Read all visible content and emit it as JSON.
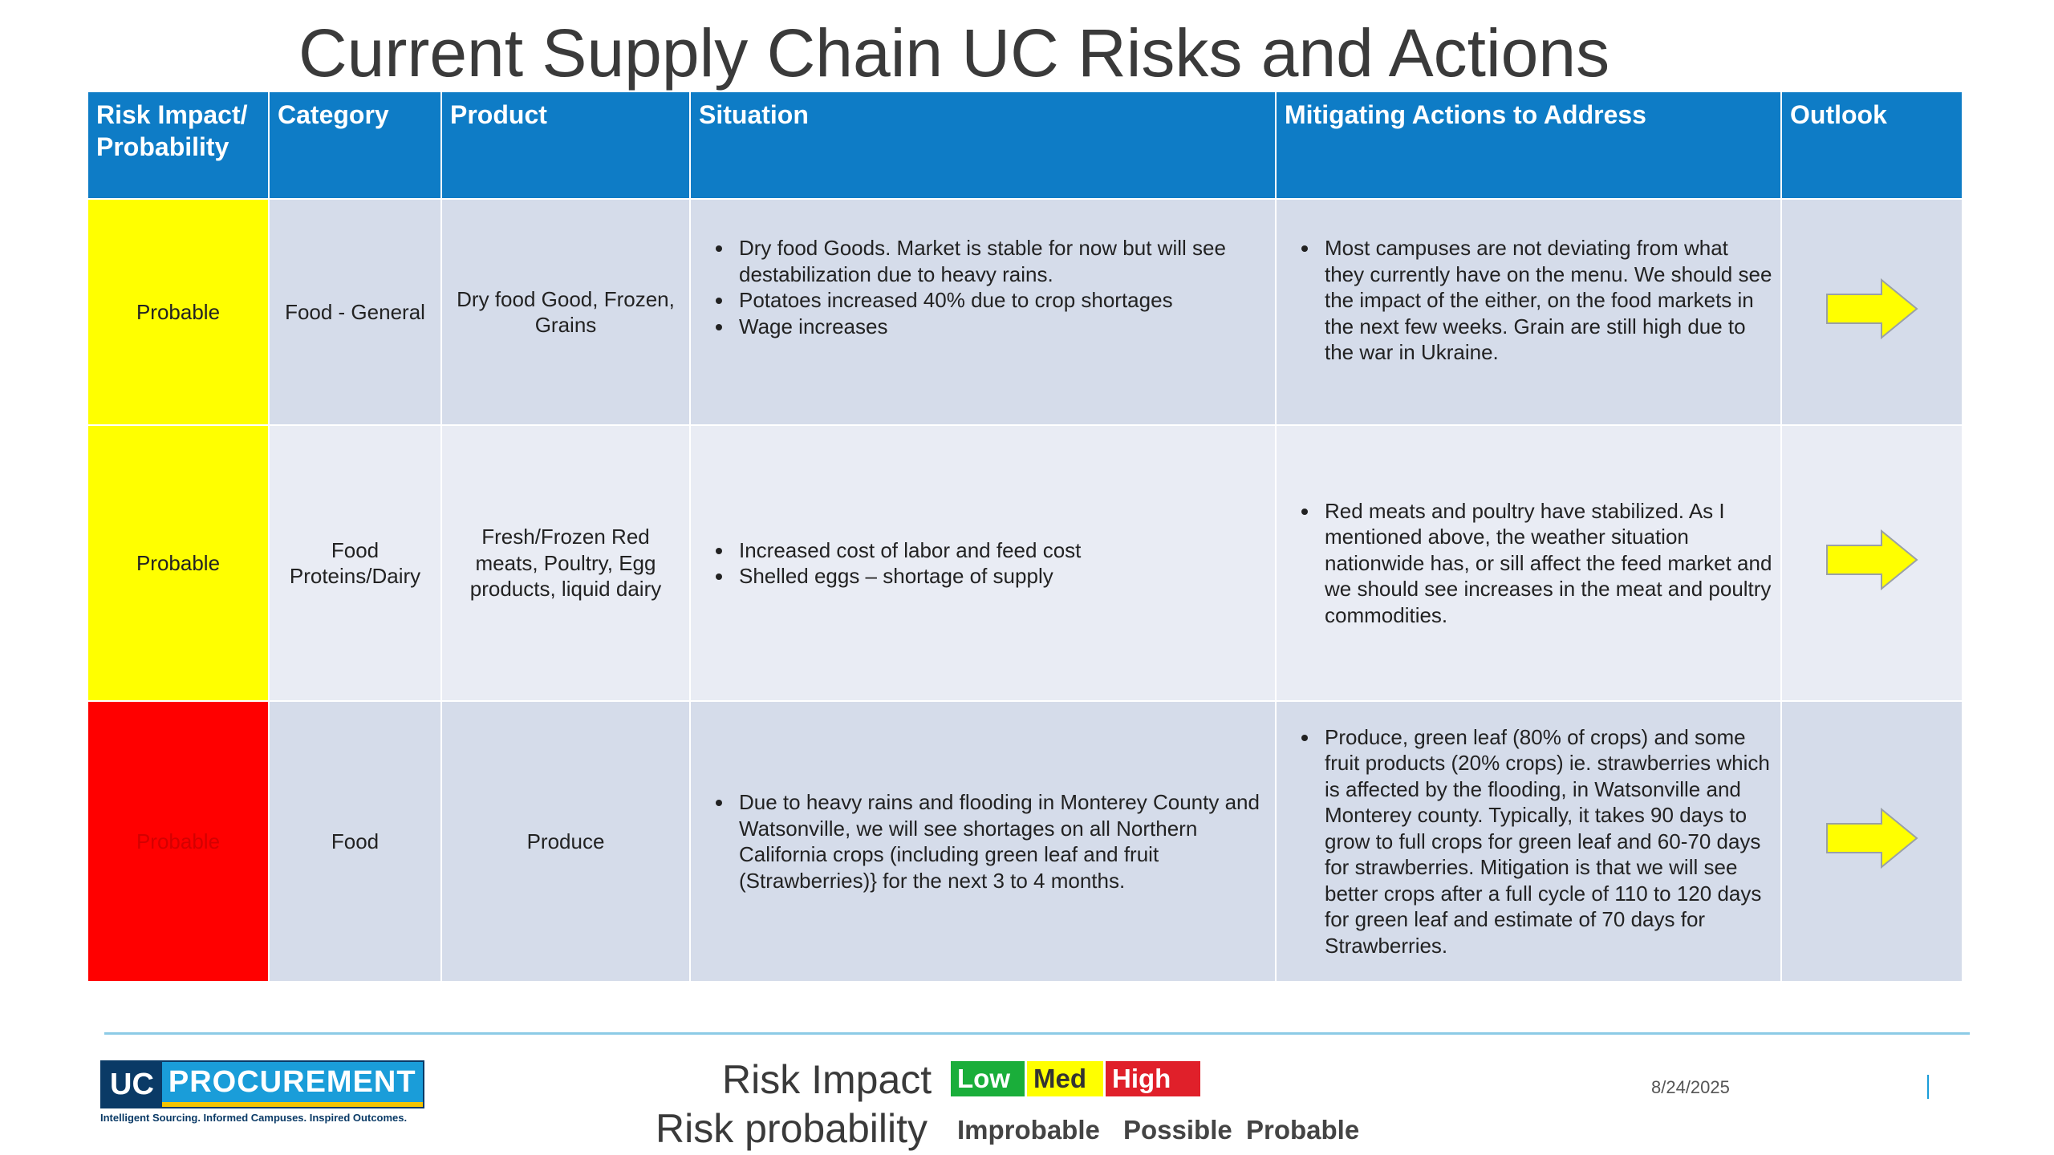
{
  "title": "Current Supply Chain UC Risks and Actions",
  "table": {
    "headers": {
      "impact": "Risk Impact/ Probability",
      "category": "Category",
      "product": "Product",
      "situation": "Situation",
      "actions": "Mitigating Actions to Address",
      "outlook": "Outlook"
    },
    "rows": [
      {
        "impact": "Probable",
        "impact_color": "#ffff00",
        "category": "Food - General",
        "product": "Dry food Good, Frozen, Grains",
        "situation": [
          "Dry food Goods. Market is stable for now but will see destabilization due to heavy rains.",
          "Potatoes increased 40% due to crop shortages",
          "Wage increases"
        ],
        "actions": [
          "Most campuses are not deviating from what they currently have on the menu. We should see the impact of the either, on the food markets in the next few weeks. Grain are still high due to the war in Ukraine."
        ],
        "outlook_icon": "right-arrow-icon"
      },
      {
        "impact": "Probable",
        "impact_color": "#ffff00",
        "category": "Food Proteins/Dairy",
        "product": "Fresh/Frozen Red meats, Poultry, Egg products, liquid dairy",
        "situation": [
          "Increased cost of labor and feed cost",
          "Shelled eggs – shortage of supply"
        ],
        "actions": [
          "Red meats and poultry have stabilized. As I mentioned above, the weather situation nationwide has, or sill affect the feed market and we should see increases in the meat and poultry commodities."
        ],
        "outlook_icon": "right-arrow-icon"
      },
      {
        "impact": "Probable",
        "impact_color": "#ff0000",
        "category": "Food",
        "product": "Produce",
        "situation": [
          "Due to heavy rains and flooding in Monterey County and Watsonville, we will see shortages on all Northern California crops (including green leaf and fruit (Strawberries)} for the next 3 to 4 months."
        ],
        "actions": [
          "Produce, green leaf (80% of crops) and some fruit products (20% crops) ie. strawberries which is affected by the flooding, in Watsonville and Monterey county. Typically, it takes 90 days to grow to full crops for green leaf and 60-70 days for strawberries. Mitigation is that we will see better crops after a full cycle of 110 to 120 days for green leaf and estimate of 70 days for Strawberries."
        ],
        "outlook_icon": "right-arrow-icon"
      }
    ]
  },
  "footer": {
    "logo": {
      "uc": "UC",
      "procurement": "PROCUREMENT",
      "tagline": "Intelligent Sourcing. Informed Campuses. Inspired Outcomes."
    },
    "risk_impact_label": "Risk Impact",
    "risk_probability_label": "Risk probability",
    "impact_levels": [
      {
        "label": "Low",
        "color": "#1aae3a"
      },
      {
        "label": "Med",
        "color": "#ffff00"
      },
      {
        "label": "High",
        "color": "#e0202a"
      }
    ],
    "probability_levels": [
      "Improbable",
      "Possible",
      "Probable"
    ],
    "date": "8/24/2025"
  },
  "colors": {
    "header_blue": "#0e7cc6",
    "row_light": "#e9ecf4",
    "row_dark": "#d5dcea",
    "arrow_fill": "#ffff00"
  }
}
